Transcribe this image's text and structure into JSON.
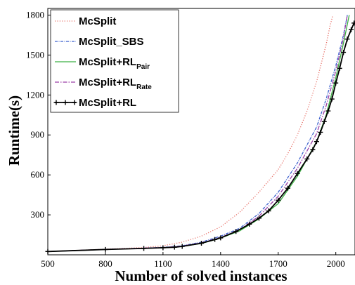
{
  "chart_data": {
    "type": "line",
    "xlabel": "Number of solved instances",
    "ylabel": "Runtime(s)",
    "xlim": [
      500,
      2100
    ],
    "ylim": [
      0,
      1850
    ],
    "xticks": [
      500,
      800,
      1100,
      1400,
      1700,
      2000
    ],
    "yticks": [
      300,
      600,
      900,
      1200,
      1500,
      1800
    ],
    "legend_position": "top-left",
    "grid": false,
    "series": [
      {
        "name": "McSplit",
        "name_sub": "",
        "color": "#e8736b",
        "style": "dotted",
        "marker": "none",
        "points": [
          [
            500,
            25
          ],
          [
            800,
            42
          ],
          [
            1000,
            55
          ],
          [
            1100,
            68
          ],
          [
            1200,
            95
          ],
          [
            1300,
            140
          ],
          [
            1400,
            210
          ],
          [
            1500,
            320
          ],
          [
            1600,
            470
          ],
          [
            1700,
            640
          ],
          [
            1750,
            760
          ],
          [
            1800,
            900
          ],
          [
            1850,
            1080
          ],
          [
            1900,
            1300
          ],
          [
            1950,
            1580
          ],
          [
            1970,
            1720
          ],
          [
            1985,
            1800
          ]
        ]
      },
      {
        "name": "McSplit_SBS",
        "name_sub": "",
        "color": "#3a5fcd",
        "style": "dashdot-dense",
        "marker": "none",
        "points": [
          [
            500,
            25
          ],
          [
            800,
            40
          ],
          [
            1000,
            50
          ],
          [
            1100,
            56
          ],
          [
            1200,
            68
          ],
          [
            1300,
            95
          ],
          [
            1400,
            140
          ],
          [
            1500,
            200
          ],
          [
            1600,
            310
          ],
          [
            1700,
            470
          ],
          [
            1800,
            690
          ],
          [
            1900,
            960
          ],
          [
            1950,
            1170
          ],
          [
            2000,
            1420
          ],
          [
            2040,
            1650
          ],
          [
            2060,
            1800
          ]
        ]
      },
      {
        "name": "McSplit+RL",
        "name_sub": "Pair",
        "color": "#3cb043",
        "style": "solid",
        "marker": "none",
        "points": [
          [
            500,
            25
          ],
          [
            800,
            40
          ],
          [
            1000,
            48
          ],
          [
            1100,
            53
          ],
          [
            1200,
            63
          ],
          [
            1300,
            85
          ],
          [
            1400,
            125
          ],
          [
            1500,
            180
          ],
          [
            1600,
            270
          ],
          [
            1700,
            385
          ],
          [
            1800,
            590
          ],
          [
            1900,
            850
          ],
          [
            1950,
            1050
          ],
          [
            2000,
            1330
          ],
          [
            2040,
            1590
          ],
          [
            2070,
            1800
          ]
        ]
      },
      {
        "name": "McSplit+RL",
        "name_sub": "Rate",
        "color": "#9b3fa6",
        "style": "dashdot",
        "marker": "none",
        "points": [
          [
            500,
            25
          ],
          [
            800,
            41
          ],
          [
            1000,
            50
          ],
          [
            1100,
            55
          ],
          [
            1200,
            66
          ],
          [
            1300,
            90
          ],
          [
            1400,
            130
          ],
          [
            1500,
            190
          ],
          [
            1600,
            290
          ],
          [
            1700,
            440
          ],
          [
            1800,
            650
          ],
          [
            1900,
            910
          ],
          [
            1950,
            1120
          ],
          [
            2000,
            1380
          ],
          [
            2040,
            1630
          ],
          [
            2060,
            1800
          ]
        ]
      },
      {
        "name": "McSplit+RL",
        "name_sub": "",
        "color": "#000000",
        "style": "solid",
        "marker": "plus",
        "points": [
          [
            500,
            25
          ],
          [
            800,
            40
          ],
          [
            1000,
            48
          ],
          [
            1100,
            53
          ],
          [
            1160,
            57
          ],
          [
            1200,
            63
          ],
          [
            1300,
            87
          ],
          [
            1370,
            115
          ],
          [
            1400,
            127
          ],
          [
            1480,
            175
          ],
          [
            1550,
            230
          ],
          [
            1600,
            275
          ],
          [
            1650,
            330
          ],
          [
            1700,
            410
          ],
          [
            1750,
            500
          ],
          [
            1800,
            610
          ],
          [
            1850,
            720
          ],
          [
            1880,
            790
          ],
          [
            1900,
            850
          ],
          [
            1920,
            920
          ],
          [
            1940,
            1000
          ],
          [
            1960,
            1080
          ],
          [
            1980,
            1170
          ],
          [
            2000,
            1290
          ],
          [
            2020,
            1400
          ],
          [
            2040,
            1520
          ],
          [
            2060,
            1620
          ],
          [
            2080,
            1690
          ],
          [
            2095,
            1740
          ]
        ]
      }
    ]
  }
}
